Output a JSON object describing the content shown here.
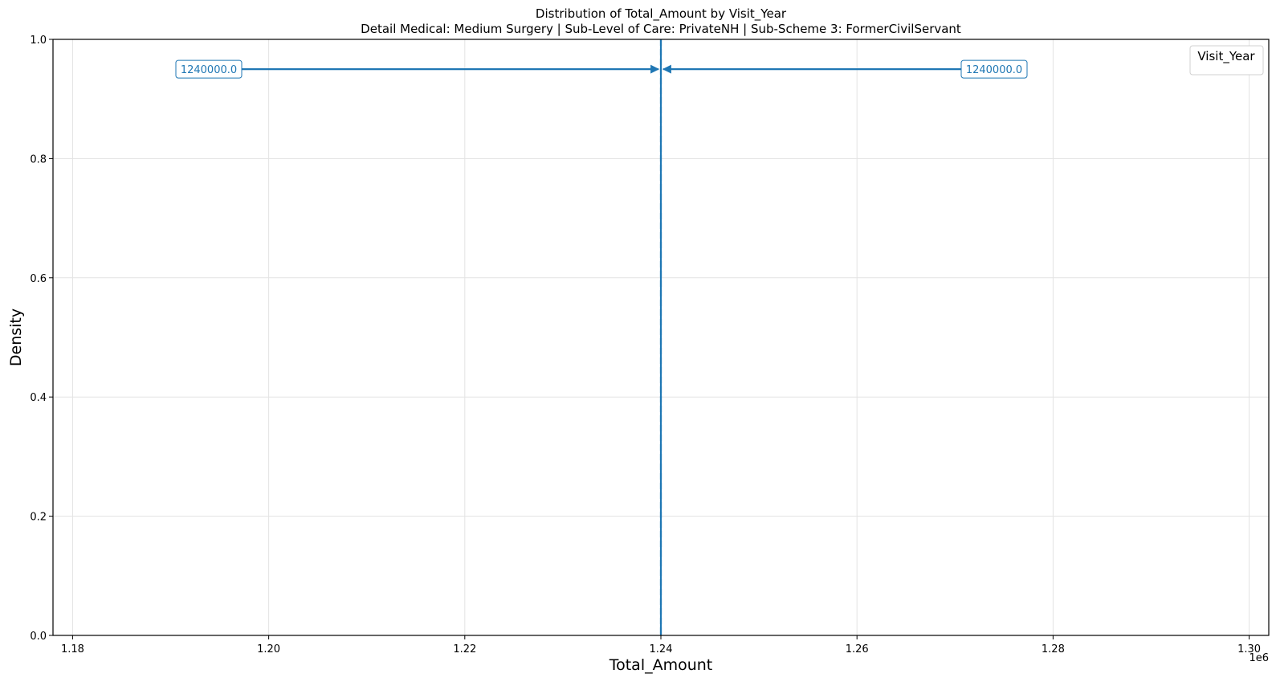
{
  "chart_data": {
    "type": "line",
    "title": "Distribution of Total_Amount by Visit_Year",
    "subtitle": "Detail Medical: Medium Surgery | Sub-Level of Care: PrivateNH | Sub-Scheme 3: FormerCivilServant",
    "xlabel": "Total_Amount",
    "ylabel": "Density",
    "x_offset_label": "1e6",
    "xlim": [
      1178000,
      1302000
    ],
    "ylim": [
      0,
      1
    ],
    "x_ticks": [
      1180000,
      1200000,
      1220000,
      1240000,
      1260000,
      1280000,
      1300000
    ],
    "x_tick_labels": [
      "1.18",
      "1.20",
      "1.22",
      "1.24",
      "1.26",
      "1.28",
      "1.30"
    ],
    "y_ticks": [
      0,
      0.2,
      0.4,
      0.6,
      0.8,
      1.0
    ],
    "y_tick_labels": [
      "0.0",
      "0.2",
      "0.4",
      "0.6",
      "0.8",
      "1.0"
    ],
    "grid": true,
    "legend": {
      "title": "Visit_Year",
      "placement": "top-right",
      "entries": []
    },
    "series": [
      {
        "type": "vline",
        "x": 1240000,
        "color": "#1f77b4",
        "style": "solid"
      },
      {
        "type": "vline",
        "x": 1240000,
        "color": "#1f77b4",
        "style": "dashed"
      }
    ],
    "annotations": [
      {
        "text": "1240000.0",
        "x": 1240000,
        "y": 0.95,
        "side": "left",
        "color": "#1f77b4"
      },
      {
        "text": "1240000.0",
        "x": 1240000,
        "y": 0.95,
        "side": "right",
        "color": "#1f77b4"
      }
    ]
  }
}
